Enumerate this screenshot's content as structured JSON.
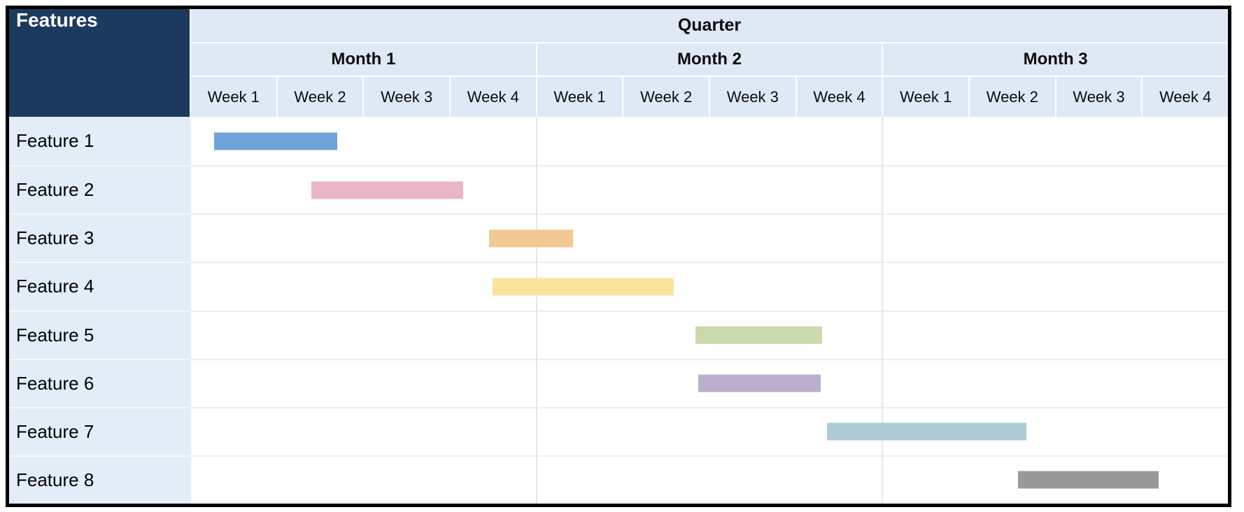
{
  "chart_data": {
    "type": "table",
    "subtype": "gantt-timeline",
    "title": "Quarter",
    "corner_header": "Features",
    "quarter_header": "Quarter",
    "months": [
      {
        "label": "Month 1",
        "weeks": [
          "Week 1",
          "Week 2",
          "Week 3",
          "Week 4"
        ]
      },
      {
        "label": "Month 2",
        "weeks": [
          "Week 1",
          "Week 2",
          "Week 3",
          "Week 4"
        ]
      },
      {
        "label": "Month 3",
        "weeks": [
          "Week 1",
          "Week 2",
          "Week 3",
          "Week 4"
        ]
      }
    ],
    "total_weeks": 12,
    "bars": [
      {
        "feature": "Feature 1",
        "start_week": 0.27,
        "end_week": 1.69,
        "color": "#6FA3DC",
        "note": "Month 1, Weeks 1-2"
      },
      {
        "feature": "Feature 2",
        "start_week": 1.39,
        "end_week": 3.15,
        "color": "#E9B5C7",
        "note": "Month 1, Weeks 2-4"
      },
      {
        "feature": "Feature 3",
        "start_week": 3.45,
        "end_week": 4.42,
        "color": "#F2C894",
        "note": "Month 1 Week 4 - Month 2 Week 1"
      },
      {
        "feature": "Feature 4",
        "start_week": 3.49,
        "end_week": 5.59,
        "color": "#FAE49C",
        "note": "Month 1 Week 4 - Month 2 Week 2"
      },
      {
        "feature": "Feature 5",
        "start_week": 5.84,
        "end_week": 7.3,
        "color": "#CBD9AC",
        "note": "Month 2, Weeks 2-4"
      },
      {
        "feature": "Feature 6",
        "start_week": 5.87,
        "end_week": 7.29,
        "color": "#B9AFCD",
        "note": "Month 2, Weeks 2-4"
      },
      {
        "feature": "Feature 7",
        "start_week": 7.36,
        "end_week": 9.67,
        "color": "#AECCD7",
        "note": "Month 2 Week 4 - Month 3 Week 2"
      },
      {
        "feature": "Feature 8",
        "start_week": 9.57,
        "end_week": 11.2,
        "color": "#999999",
        "note": "Month 3, Weeks 2-4"
      }
    ],
    "legend": "none",
    "grid": "vertical gridlines at month boundaries (weeks 4 and 8); light horizontal dividers between feature rows"
  },
  "colors": {
    "corner_bg": "#1C3A5E",
    "corner_text": "#FFFFFF",
    "header_bg": "#DFE9F5",
    "label_col_bg": "#E3EDF8",
    "table_border": "#000000",
    "row_divider": "#EDEDED",
    "month_gridline": "#E7E7E7",
    "cell_gap": "#FDFDFE"
  }
}
